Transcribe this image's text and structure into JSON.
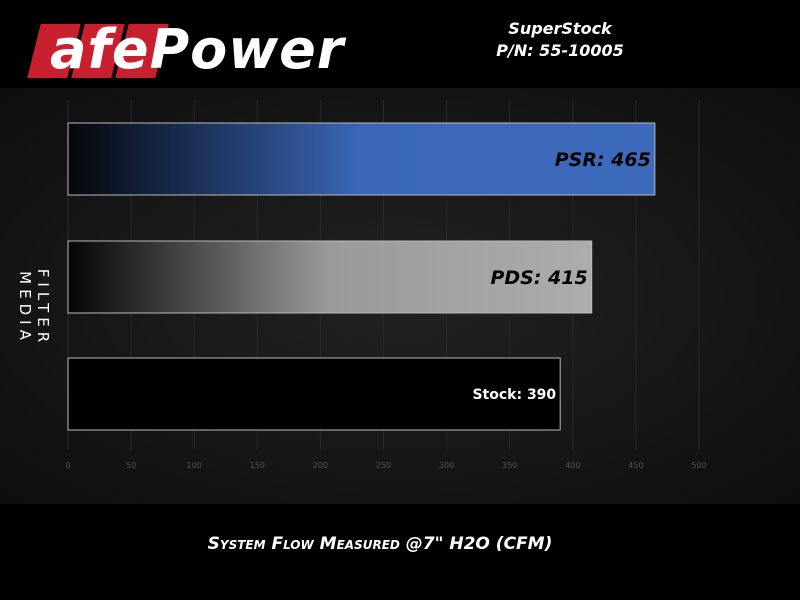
{
  "header": {
    "logo_text": "aFePower",
    "product_name": "SuperStock",
    "part_number": "P/N: 55-10005"
  },
  "chart_data": {
    "type": "bar",
    "orientation": "horizontal",
    "categories": [
      "PSR",
      "PDS",
      "Stock"
    ],
    "values": [
      465,
      415,
      390
    ],
    "data_labels": [
      "PSR: 465",
      "PDS: 415",
      "Stock: 390"
    ],
    "xlabel": "System Flow Measured @7\" H2O (CFM)",
    "ylabel": "FILTER MEDIA",
    "xlim": [
      0,
      500
    ],
    "xticks": [
      0,
      50,
      100,
      150,
      200,
      250,
      300,
      350,
      400,
      450,
      500
    ],
    "grid": true,
    "colors": {
      "PSR": "#3a67b8",
      "PDS": "#a8a8a8",
      "Stock": "#000000"
    }
  }
}
